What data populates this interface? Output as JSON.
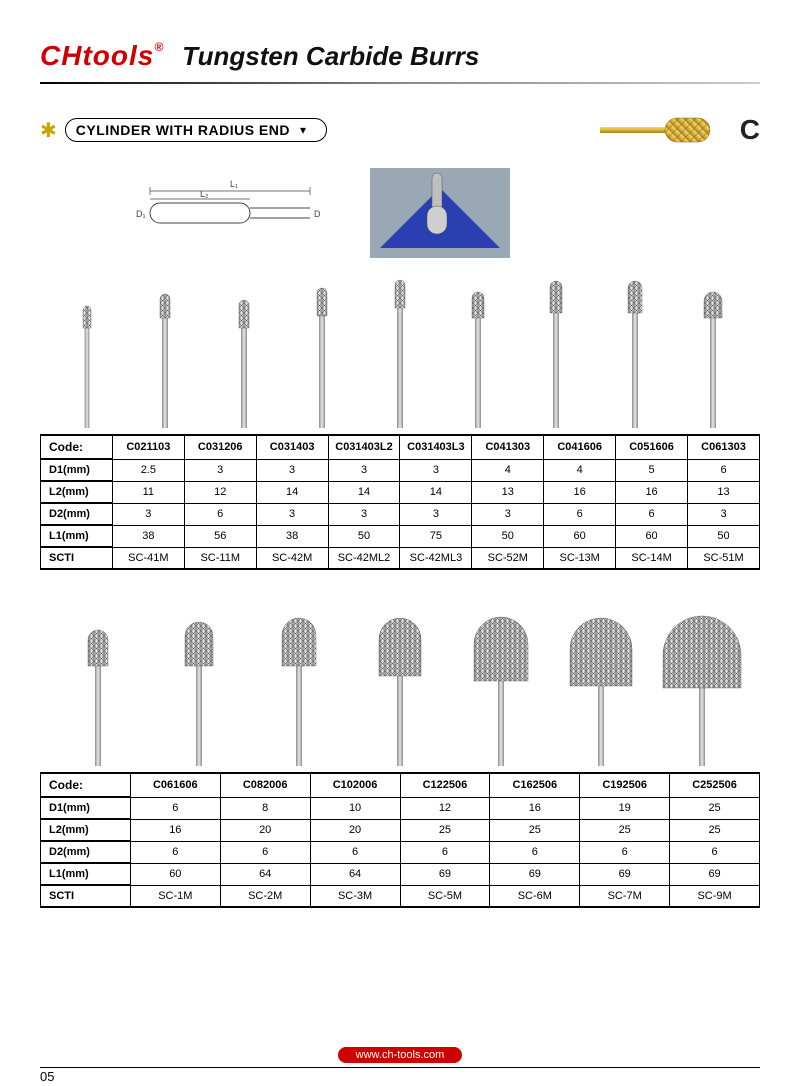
{
  "header": {
    "logo_text": "CHtools",
    "reg_mark": "®",
    "title": "Tungsten Carbide Burrs"
  },
  "section": {
    "label": "CYLINDER WITH RADIUS END",
    "type_letter": "C"
  },
  "diagram": {
    "labels": {
      "L1": "L₁",
      "L2": "L₂",
      "D1": "D₁",
      "D2": "D₂"
    }
  },
  "burrs_top": [
    {
      "code": "C021103",
      "head_d": 8,
      "head_h": 22,
      "shank_h": 100
    },
    {
      "code": "C031206",
      "head_d": 10,
      "head_h": 24,
      "shank_h": 110
    },
    {
      "code": "C031403",
      "head_d": 10,
      "head_h": 28,
      "shank_h": 100
    },
    {
      "code": "C031403L2",
      "head_d": 10,
      "head_h": 28,
      "shank_h": 112
    },
    {
      "code": "C031403L3",
      "head_d": 10,
      "head_h": 28,
      "shank_h": 120
    },
    {
      "code": "C041303",
      "head_d": 12,
      "head_h": 26,
      "shank_h": 110
    },
    {
      "code": "C041606",
      "head_d": 12,
      "head_h": 32,
      "shank_h": 115
    },
    {
      "code": "C051606",
      "head_d": 14,
      "head_h": 32,
      "shank_h": 115
    },
    {
      "code": "C061303",
      "head_d": 18,
      "head_h": 26,
      "shank_h": 110
    }
  ],
  "burrs_bottom": [
    {
      "code": "C061606",
      "head_d": 20,
      "head_h": 36,
      "shank_h": 100
    },
    {
      "code": "C082006",
      "head_d": 28,
      "head_h": 44,
      "shank_h": 100
    },
    {
      "code": "C102006",
      "head_d": 34,
      "head_h": 48,
      "shank_h": 100
    },
    {
      "code": "C122506",
      "head_d": 42,
      "head_h": 58,
      "shank_h": 90
    },
    {
      "code": "C162506",
      "head_d": 54,
      "head_h": 64,
      "shank_h": 85
    },
    {
      "code": "C192506",
      "head_d": 62,
      "head_h": 68,
      "shank_h": 80
    },
    {
      "code": "C252506",
      "head_d": 78,
      "head_h": 72,
      "shank_h": 78
    }
  ],
  "table1": {
    "rows": [
      "D1(mm)",
      "L2(mm)",
      "D2(mm)",
      "L1(mm)",
      "SCTI"
    ],
    "cols": [
      "C021103",
      "C031206",
      "C031403",
      "C031403L2",
      "C031403L3",
      "C041303",
      "C041606",
      "C051606",
      "C061303"
    ],
    "data": [
      [
        "2.5",
        "3",
        "3",
        "3",
        "3",
        "4",
        "4",
        "5",
        "6"
      ],
      [
        "11",
        "12",
        "14",
        "14",
        "14",
        "13",
        "16",
        "16",
        "13"
      ],
      [
        "3",
        "6",
        "3",
        "3",
        "3",
        "3",
        "6",
        "6",
        "3"
      ],
      [
        "38",
        "56",
        "38",
        "50",
        "75",
        "50",
        "60",
        "60",
        "50"
      ],
      [
        "SC-41M",
        "SC-11M",
        "SC-42M",
        "SC-42ML2",
        "SC-42ML3",
        "SC-52M",
        "SC-13M",
        "SC-14M",
        "SC-51M"
      ]
    ],
    "code_label": "Code:"
  },
  "table2": {
    "rows": [
      "D1(mm)",
      "L2(mm)",
      "D2(mm)",
      "L1(mm)",
      "SCTI"
    ],
    "cols": [
      "C061606",
      "C082006",
      "C102006",
      "C122506",
      "C162506",
      "C192506",
      "C252506"
    ],
    "data": [
      [
        "6",
        "8",
        "10",
        "12",
        "16",
        "19",
        "25"
      ],
      [
        "16",
        "20",
        "20",
        "25",
        "25",
        "25",
        "25"
      ],
      [
        "6",
        "6",
        "6",
        "6",
        "6",
        "6",
        "6"
      ],
      [
        "60",
        "64",
        "64",
        "69",
        "69",
        "69",
        "69"
      ],
      [
        "SC-1M",
        "SC-2M",
        "SC-3M",
        "SC-5M",
        "SC-6M",
        "SC-7M",
        "SC-9M"
      ]
    ],
    "code_label": "Code:"
  },
  "footer": {
    "url": "www.ch-tools.com",
    "page": "05"
  },
  "colors": {
    "brand": "#d10000",
    "gold": "#c9a400",
    "steel_light": "#d0d0d0",
    "steel_dark": "#707070"
  }
}
